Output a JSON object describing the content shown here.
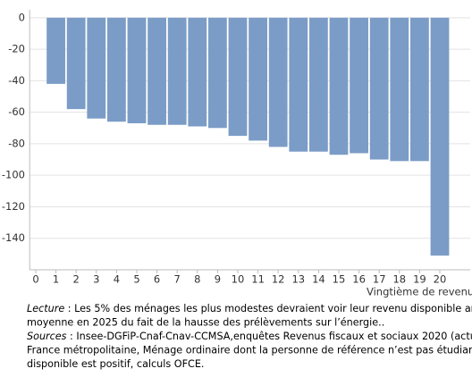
{
  "chart_data": {
    "type": "bar",
    "x": [
      1,
      2,
      3,
      4,
      5,
      6,
      7,
      8,
      9,
      10,
      11,
      12,
      13,
      14,
      15,
      16,
      17,
      18,
      19,
      20
    ],
    "values": [
      -42,
      -58,
      -64,
      -66,
      -67,
      -68,
      -68,
      -69,
      -70,
      -75,
      -78,
      -82,
      -85,
      -85,
      -87,
      -86,
      -90,
      -91,
      -91,
      -151
    ],
    "color": "#7b9cc6",
    "xlabel": "Vingtième de revenu",
    "xlim": [
      -0.3,
      21.5
    ],
    "xticks": [
      0,
      1,
      2,
      3,
      4,
      5,
      6,
      7,
      8,
      9,
      10,
      11,
      12,
      13,
      14,
      15,
      16,
      17,
      18,
      19,
      20
    ],
    "ylim": [
      -160,
      5
    ],
    "yticks": [
      0,
      -20,
      -40,
      -60,
      -80,
      -100,
      -120,
      -140
    ],
    "grid": true
  },
  "notes": [
    {
      "label": "Lecture",
      "text": " : Les 5% des ménages les plus modestes devraient voir leur revenu disponible am"
    },
    {
      "text": "moyenne  en 2025 du fait de la hausse des prélèvements sur l’énergie.."
    },
    {
      "label": "Sources",
      "text": " : Insee-DGFiP-Cnaf-Cnav-CCMSA,enquêtes Revenus fiscaux et sociaux 2020 (actua"
    },
    {
      "text": "France métropolitaine, Ménage ordinaire dont la personne de référence n’est pas étudian"
    },
    {
      "text": "disponible  est positif,  calculs OFCE."
    }
  ]
}
